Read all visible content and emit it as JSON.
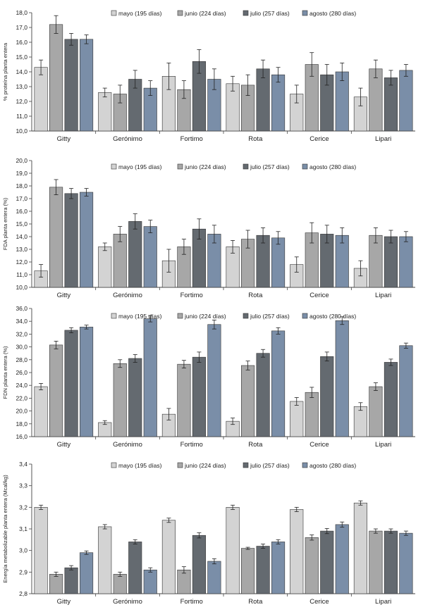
{
  "colors": [
    "#d3d3d3",
    "#a7a7a7",
    "#646a70",
    "#7a8ea8"
  ],
  "chart_data": [
    {
      "type": "bar",
      "title": "",
      "ylabel": "% proteína planta entera",
      "ylim": [
        10,
        18
      ],
      "ystep": 1,
      "ydecimals": 1,
      "legend_position": "top-right",
      "categories": [
        "Gitty",
        "Gerónimo",
        "Fortimo",
        "Rota",
        "Cerice",
        "Lipari"
      ],
      "series": [
        {
          "name": "mayo (195 días)",
          "values": [
            14.3,
            12.6,
            13.7,
            13.2,
            12.5,
            12.3
          ],
          "errors": [
            0.5,
            0.3,
            0.9,
            0.5,
            0.6,
            0.6
          ]
        },
        {
          "name": "junio (224 días)",
          "values": [
            17.2,
            12.5,
            12.8,
            13.1,
            14.5,
            14.2
          ],
          "errors": [
            0.6,
            0.6,
            0.6,
            0.7,
            0.8,
            0.6
          ]
        },
        {
          "name": "julio (257 días)",
          "values": [
            16.2,
            13.5,
            14.7,
            14.2,
            13.8,
            13.6
          ],
          "errors": [
            0.4,
            0.6,
            0.8,
            0.6,
            0.7,
            0.5
          ]
        },
        {
          "name": "agosto (280 días)",
          "values": [
            16.2,
            12.9,
            13.5,
            13.8,
            14.0,
            14.1
          ],
          "errors": [
            0.3,
            0.5,
            0.7,
            0.5,
            0.6,
            0.4
          ]
        }
      ]
    },
    {
      "type": "bar",
      "title": "",
      "ylabel": "FDA planta entera (%)",
      "ylim": [
        10,
        20
      ],
      "ystep": 1,
      "ydecimals": 1,
      "legend_position": "top-right",
      "categories": [
        "Gitty",
        "Gerónimo",
        "Fortimo",
        "Rota",
        "Cerice",
        "Lipari"
      ],
      "series": [
        {
          "name": "mayo (195 días)",
          "values": [
            11.3,
            13.2,
            12.1,
            13.2,
            11.8,
            11.5
          ],
          "errors": [
            0.5,
            0.3,
            0.9,
            0.5,
            0.6,
            0.6
          ]
        },
        {
          "name": "junio (224 días)",
          "values": [
            17.9,
            14.2,
            13.2,
            13.8,
            14.3,
            14.1
          ],
          "errors": [
            0.6,
            0.6,
            0.6,
            0.7,
            0.8,
            0.6
          ]
        },
        {
          "name": "julio (257 días)",
          "values": [
            17.4,
            15.2,
            14.6,
            14.1,
            14.2,
            14.0
          ],
          "errors": [
            0.4,
            0.6,
            0.8,
            0.6,
            0.7,
            0.5
          ]
        },
        {
          "name": "agosto (280 días)",
          "values": [
            17.5,
            14.8,
            14.2,
            13.9,
            14.1,
            14.0
          ],
          "errors": [
            0.3,
            0.5,
            0.7,
            0.5,
            0.6,
            0.4
          ]
        }
      ]
    },
    {
      "type": "bar",
      "title": "",
      "ylabel": "FDN planta entera (%)",
      "ylim": [
        16,
        36
      ],
      "ystep": 2,
      "ydecimals": 1,
      "legend_position": "top-right",
      "categories": [
        "Gitty",
        "Gerónimo",
        "Fortimo",
        "Rota",
        "Cerice",
        "Lipari"
      ],
      "series": [
        {
          "name": "mayo (195 días)",
          "values": [
            23.8,
            18.2,
            19.5,
            18.4,
            21.5,
            20.7
          ],
          "errors": [
            0.5,
            0.3,
            0.9,
            0.5,
            0.6,
            0.6
          ]
        },
        {
          "name": "junio (224 días)",
          "values": [
            30.3,
            27.4,
            27.3,
            27.1,
            22.9,
            23.8
          ],
          "errors": [
            0.6,
            0.6,
            0.6,
            0.7,
            0.8,
            0.6
          ]
        },
        {
          "name": "julio (257 días)",
          "values": [
            32.6,
            28.2,
            28.4,
            29.0,
            28.5,
            27.6
          ],
          "errors": [
            0.4,
            0.6,
            0.8,
            0.6,
            0.7,
            0.5
          ]
        },
        {
          "name": "agosto (280 días)",
          "values": [
            33.1,
            34.4,
            33.5,
            32.5,
            34.1,
            30.2
          ],
          "errors": [
            0.3,
            0.5,
            0.7,
            0.5,
            0.6,
            0.4
          ]
        }
      ]
    },
    {
      "type": "bar",
      "title": "",
      "ylabel": "Energía metabolizable planta entera (Mcal/kg)",
      "ylim": [
        2.8,
        3.4
      ],
      "ystep": 0.1,
      "ydecimals": 1,
      "legend_position": "top-right",
      "categories": [
        "Gitty",
        "Gerónimo",
        "Fortimo",
        "Rota",
        "Cerice",
        "Lipari"
      ],
      "series": [
        {
          "name": "mayo (195 días)",
          "values": [
            3.2,
            3.11,
            3.14,
            3.2,
            3.19,
            3.22
          ],
          "errors": [
            0.01,
            0.01,
            0.01,
            0.01,
            0.01,
            0.01
          ]
        },
        {
          "name": "junio (224 días)",
          "values": [
            2.89,
            2.89,
            2.91,
            3.01,
            3.06,
            3.09
          ],
          "errors": [
            0.01,
            0.01,
            0.015,
            0.005,
            0.012,
            0.01
          ]
        },
        {
          "name": "julio (257 días)",
          "values": [
            2.92,
            3.04,
            3.07,
            3.02,
            3.09,
            3.09
          ],
          "errors": [
            0.01,
            0.01,
            0.012,
            0.01,
            0.012,
            0.01
          ]
        },
        {
          "name": "agosto (280 días)",
          "values": [
            2.99,
            2.91,
            2.95,
            3.04,
            3.12,
            3.08
          ],
          "errors": [
            0.008,
            0.01,
            0.012,
            0.01,
            0.012,
            0.01
          ]
        }
      ]
    }
  ]
}
